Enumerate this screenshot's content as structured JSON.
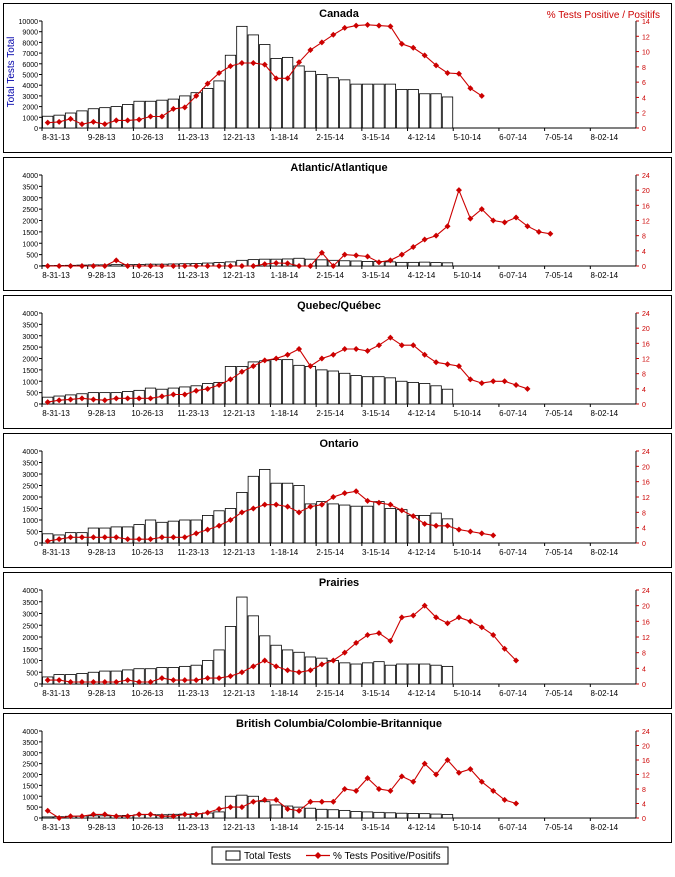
{
  "legend": {
    "bars_label": "Total Tests",
    "line_label": "% Tests Positive/Positifs"
  },
  "corner_legend": "% Tests Positive / Positifs",
  "y_left_title": "Total Tests Total",
  "colors": {
    "bars": "#ffffff",
    "bar_stroke": "#000000",
    "line": "#cc0000",
    "axis": "#000000"
  },
  "chart_data": [
    {
      "type": "bar",
      "title": "Canada",
      "ylim": [
        0,
        10000
      ],
      "y_ticks": [
        "0",
        "1000",
        "2000",
        "3000",
        "4000",
        "5000",
        "6000",
        "7000",
        "8000",
        "9000",
        "10000"
      ],
      "y2lim": [
        0,
        14
      ],
      "y2_ticks": [
        "0",
        "2",
        "4",
        "6",
        "8",
        "10",
        "12",
        "14"
      ],
      "x_labels": [
        "8-31-13",
        "9-28-13",
        "10-26-13",
        "11-23-13",
        "12-21-13",
        "1-18-14",
        "2-15-14",
        "3-15-14",
        "4-12-14",
        "5-10-14",
        "6-07-14",
        "7-05-14",
        "8-02-14"
      ],
      "series": [
        {
          "name": "Total Tests",
          "type": "bar",
          "values": [
            1100,
            1200,
            1400,
            1600,
            1800,
            1900,
            2000,
            2200,
            2500,
            2500,
            2600,
            2700,
            3000,
            3300,
            3700,
            4400,
            6800,
            9500,
            8700,
            7800,
            6500,
            6600,
            5800,
            5300,
            5000,
            4700,
            4500,
            4100,
            4100,
            4100,
            4100,
            3600,
            3600,
            3200,
            3200,
            2900
          ]
        },
        {
          "name": "% Tests Positive/Positifs",
          "type": "line",
          "values": [
            0.7,
            0.8,
            1.2,
            0.5,
            0.8,
            0.5,
            1.0,
            1.0,
            1.1,
            1.5,
            1.5,
            2.5,
            2.7,
            4.2,
            5.8,
            7.2,
            8.1,
            8.5,
            8.5,
            8.3,
            6.5,
            6.5,
            8.6,
            10.2,
            11.2,
            12.2,
            13.1,
            13.4,
            13.5,
            13.4,
            13.3,
            11.0,
            10.5,
            9.5,
            8.2,
            7.2,
            7.1,
            5.2,
            4.2
          ]
        }
      ]
    },
    {
      "type": "bar",
      "title": "Atlantic/Atlantique",
      "ylim": [
        0,
        4000
      ],
      "y_ticks": [
        "0",
        "500",
        "1000",
        "1500",
        "2000",
        "2500",
        "3000",
        "3500",
        "4000"
      ],
      "y2lim": [
        0,
        24
      ],
      "y2_ticks": [
        "0",
        "4",
        "8",
        "12",
        "16",
        "20",
        "24"
      ],
      "x_labels": [
        "8-31-13",
        "9-28-13",
        "10-26-13",
        "11-23-13",
        "12-21-13",
        "1-18-14",
        "2-15-14",
        "3-15-14",
        "4-12-14",
        "5-10-14",
        "6-07-14",
        "7-05-14",
        "8-02-14"
      ],
      "series": [
        {
          "name": "Total Tests",
          "type": "bar",
          "values": [
            20,
            25,
            30,
            40,
            50,
            50,
            60,
            60,
            70,
            80,
            80,
            90,
            100,
            110,
            130,
            150,
            180,
            250,
            280,
            300,
            300,
            310,
            340,
            300,
            270,
            250,
            230,
            220,
            200,
            200,
            180,
            160,
            160,
            170,
            150,
            140
          ]
        },
        {
          "name": "% Tests Positive/Positifs",
          "type": "line",
          "values": [
            0,
            0,
            0,
            0,
            0,
            0,
            1.5,
            0,
            0,
            0,
            0,
            0,
            0,
            0,
            0,
            0,
            0,
            0,
            0,
            0.5,
            0.8,
            0.7,
            0,
            0,
            3.5,
            0,
            3.0,
            2.8,
            2.5,
            1.0,
            1.5,
            3.0,
            5.0,
            7.0,
            8.0,
            10.5,
            20.0,
            12.5,
            15.0,
            12.0,
            11.5,
            12.8,
            10.5,
            9.0,
            8.5
          ]
        }
      ]
    },
    {
      "type": "bar",
      "title": "Quebec/Québec",
      "ylim": [
        0,
        4000
      ],
      "y_ticks": [
        "0",
        "500",
        "1000",
        "1500",
        "2000",
        "2500",
        "3000",
        "3500",
        "4000"
      ],
      "y2lim": [
        0,
        24
      ],
      "y2_ticks": [
        "0",
        "4",
        "8",
        "12",
        "16",
        "20",
        "24"
      ],
      "x_labels": [
        "8-31-13",
        "9-28-13",
        "10-26-13",
        "11-23-13",
        "12-21-13",
        "1-18-14",
        "2-15-14",
        "3-15-14",
        "4-12-14",
        "5-10-14",
        "6-07-14",
        "7-05-14",
        "8-02-14"
      ],
      "series": [
        {
          "name": "Total Tests",
          "type": "bar",
          "values": [
            300,
            350,
            400,
            450,
            500,
            500,
            500,
            550,
            600,
            700,
            650,
            700,
            750,
            800,
            900,
            950,
            1650,
            1650,
            1850,
            1900,
            1950,
            1950,
            1700,
            1650,
            1500,
            1450,
            1350,
            1250,
            1200,
            1200,
            1150,
            1000,
            950,
            900,
            800,
            650
          ]
        },
        {
          "name": "% Tests Positive/Positifs",
          "type": "line",
          "values": [
            0.5,
            1.0,
            1.2,
            1.5,
            1.2,
            1.0,
            1.5,
            1.5,
            1.5,
            1.5,
            2.0,
            2.5,
            2.5,
            3.5,
            4.0,
            5.0,
            6.5,
            8.5,
            10.0,
            11.5,
            12.0,
            13.0,
            14.5,
            10.0,
            12.0,
            13.0,
            14.5,
            14.5,
            14.0,
            15.5,
            17.5,
            15.5,
            15.5,
            13.0,
            11.0,
            10.5,
            10.0,
            6.5,
            5.5,
            6.0,
            6.0,
            5.0,
            4.0
          ]
        }
      ]
    },
    {
      "type": "bar",
      "title": "Ontario",
      "ylim": [
        0,
        4000
      ],
      "y_ticks": [
        "0",
        "500",
        "1000",
        "1500",
        "2000",
        "2500",
        "3000",
        "3500",
        "4000"
      ],
      "y2lim": [
        0,
        24
      ],
      "y2_ticks": [
        "0",
        "4",
        "8",
        "12",
        "16",
        "20",
        "24"
      ],
      "x_labels": [
        "8-31-13",
        "9-28-13",
        "10-26-13",
        "11-23-13",
        "12-21-13",
        "1-18-14",
        "2-15-14",
        "3-15-14",
        "4-12-14",
        "5-10-14",
        "6-07-14",
        "7-05-14",
        "8-02-14"
      ],
      "series": [
        {
          "name": "Total Tests",
          "type": "bar",
          "values": [
            400,
            350,
            450,
            450,
            650,
            650,
            700,
            700,
            800,
            1000,
            900,
            950,
            1000,
            1000,
            1200,
            1400,
            1500,
            2200,
            2900,
            3200,
            2600,
            2600,
            2500,
            1700,
            1800,
            1700,
            1650,
            1600,
            1600,
            1800,
            1500,
            1450,
            1200,
            1200,
            1300,
            1050
          ]
        },
        {
          "name": "% Tests Positive/Positifs",
          "type": "line",
          "values": [
            0.5,
            1.0,
            1.5,
            1.5,
            1.5,
            1.5,
            1.5,
            1.0,
            1.0,
            1.0,
            1.5,
            1.5,
            1.5,
            2.5,
            3.5,
            4.5,
            6.0,
            8.0,
            9.0,
            10.0,
            10.0,
            9.5,
            8.0,
            9.5,
            10.0,
            12.0,
            13.0,
            13.5,
            11.0,
            10.5,
            10.0,
            8.5,
            7.0,
            5.0,
            4.5,
            4.5,
            3.5,
            3.0,
            2.5,
            2.0
          ]
        }
      ]
    },
    {
      "type": "bar",
      "title": "Prairies",
      "ylim": [
        0,
        4000
      ],
      "y_ticks": [
        "0",
        "500",
        "1000",
        "1500",
        "2000",
        "2500",
        "3000",
        "3500",
        "4000"
      ],
      "y2lim": [
        0,
        24
      ],
      "y2_ticks": [
        "0",
        "4",
        "8",
        "12",
        "16",
        "20",
        "24"
      ],
      "x_labels": [
        "8-31-13",
        "9-28-13",
        "10-26-13",
        "11-23-13",
        "12-21-13",
        "1-18-14",
        "2-15-14",
        "3-15-14",
        "4-12-14",
        "5-10-14",
        "6-07-14",
        "7-05-14",
        "8-02-14"
      ],
      "series": [
        {
          "name": "Total Tests",
          "type": "bar",
          "values": [
            300,
            400,
            400,
            450,
            500,
            550,
            550,
            600,
            650,
            650,
            700,
            700,
            750,
            800,
            1000,
            1450,
            2450,
            3700,
            2900,
            2050,
            1650,
            1450,
            1350,
            1150,
            1100,
            1000,
            900,
            850,
            900,
            950,
            800,
            850,
            850,
            850,
            800,
            750
          ]
        },
        {
          "name": "% Tests Positive/Positifs",
          "type": "line",
          "values": [
            1.0,
            1.0,
            0.5,
            0.5,
            0.5,
            0.5,
            0.5,
            1.0,
            0.5,
            0.5,
            1.5,
            1.0,
            1.0,
            1.0,
            1.5,
            1.5,
            2.0,
            3.0,
            4.5,
            6.0,
            4.5,
            3.5,
            3.0,
            3.5,
            5.0,
            6.0,
            8.0,
            10.5,
            12.5,
            13.0,
            11.0,
            17.0,
            17.5,
            20.0,
            17.0,
            15.5,
            17.0,
            16.0,
            14.5,
            12.5,
            9.0,
            6.0
          ]
        }
      ]
    },
    {
      "type": "bar",
      "title": "British Columbia/Colombie-Britannique",
      "ylim": [
        0,
        4000
      ],
      "y_ticks": [
        "0",
        "500",
        "1000",
        "1500",
        "2000",
        "2500",
        "3000",
        "3500",
        "4000"
      ],
      "y2lim": [
        0,
        24
      ],
      "y2_ticks": [
        "0",
        "4",
        "8",
        "12",
        "16",
        "20",
        "24"
      ],
      "x_labels": [
        "8-31-13",
        "9-28-13",
        "10-26-13",
        "11-23-13",
        "12-21-13",
        "1-18-14",
        "2-15-14",
        "3-15-14",
        "4-12-14",
        "5-10-14",
        "6-07-14",
        "7-05-14",
        "8-02-14"
      ],
      "series": [
        {
          "name": "Total Tests",
          "type": "bar",
          "values": [
            50,
            60,
            80,
            90,
            100,
            100,
            110,
            120,
            150,
            160,
            150,
            170,
            180,
            200,
            230,
            280,
            1000,
            1050,
            1000,
            750,
            600,
            550,
            500,
            450,
            400,
            380,
            350,
            300,
            280,
            260,
            240,
            220,
            210,
            200,
            180,
            160
          ]
        },
        {
          "name": "% Tests Positive/Positifs",
          "type": "line",
          "values": [
            2.0,
            0,
            0.5,
            0.5,
            1.0,
            1.0,
            0.5,
            0.5,
            1.0,
            1.0,
            0.5,
            0.5,
            1.0,
            1.0,
            1.5,
            2.5,
            3.0,
            3.0,
            4.5,
            5.0,
            5.0,
            2.5,
            2.0,
            4.5,
            4.5,
            4.5,
            8.0,
            7.5,
            11.0,
            8.0,
            7.5,
            11.5,
            10.0,
            15.0,
            12.0,
            16.0,
            12.5,
            13.5,
            10.0,
            7.5,
            5.0,
            4.0
          ]
        }
      ]
    }
  ]
}
